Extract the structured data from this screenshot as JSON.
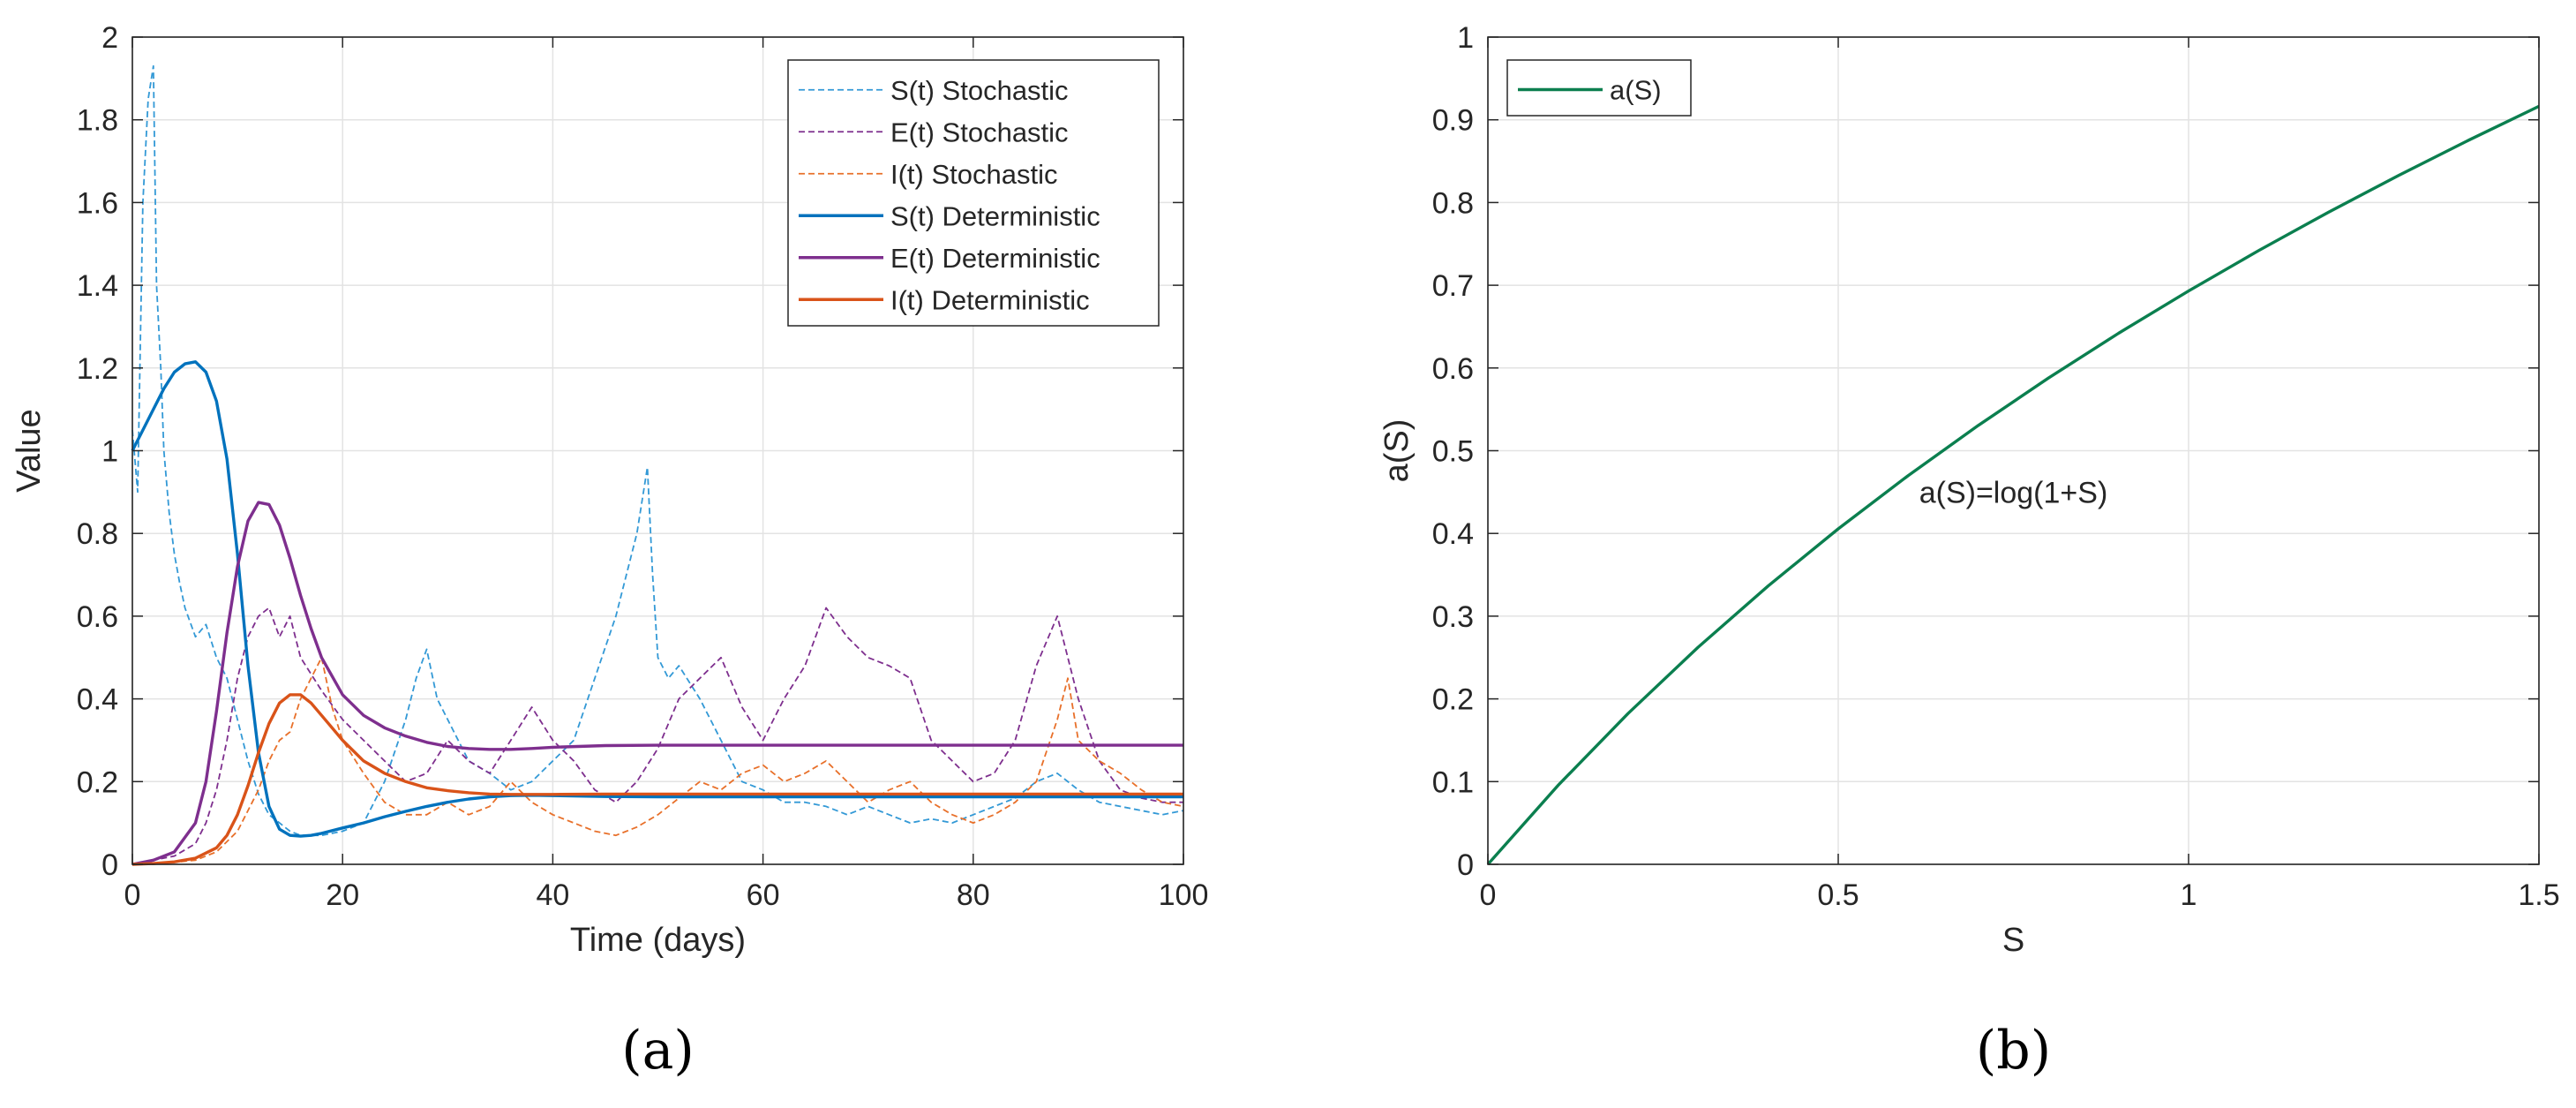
{
  "chart_data": [
    {
      "type": "line",
      "panel_label": "(a)",
      "xlabel": "Time (days)",
      "ylabel": "Value",
      "xlim": [
        0,
        100
      ],
      "ylim": [
        0,
        2
      ],
      "xticks": [
        0,
        20,
        40,
        60,
        80,
        100
      ],
      "yticks": [
        0,
        0.2,
        0.4,
        0.6,
        0.8,
        1,
        1.2,
        1.4,
        1.6,
        1.8,
        2
      ],
      "grid": true,
      "legend_position": "top-right",
      "series": [
        {
          "name": "S(t) Stochastic",
          "color": "#3399d6",
          "style": "dashed",
          "x": [
            0,
            0.5,
            1,
            1.5,
            2,
            2.3,
            2.7,
            3,
            3.5,
            4,
            4.5,
            5,
            6,
            7,
            8,
            9,
            10,
            11,
            12,
            13,
            14,
            15,
            16,
            18,
            20,
            22,
            24,
            26,
            27,
            28,
            29,
            30,
            32,
            34,
            36,
            38,
            40,
            42,
            44,
            46,
            47,
            48,
            49,
            49.5,
            50,
            51,
            52,
            54,
            56,
            58,
            60,
            62,
            64,
            66,
            68,
            70,
            72,
            74,
            76,
            78,
            80,
            82,
            84,
            86,
            88,
            90,
            92,
            94,
            96,
            98,
            100
          ],
          "values": [
            1.05,
            0.9,
            1.6,
            1.85,
            1.93,
            1.4,
            1.2,
            1.0,
            0.85,
            0.75,
            0.68,
            0.62,
            0.55,
            0.58,
            0.5,
            0.45,
            0.35,
            0.25,
            0.17,
            0.12,
            0.1,
            0.08,
            0.07,
            0.07,
            0.08,
            0.1,
            0.2,
            0.35,
            0.45,
            0.52,
            0.4,
            0.35,
            0.25,
            0.22,
            0.18,
            0.2,
            0.25,
            0.3,
            0.45,
            0.6,
            0.7,
            0.8,
            0.96,
            0.7,
            0.5,
            0.45,
            0.48,
            0.4,
            0.3,
            0.2,
            0.18,
            0.15,
            0.15,
            0.14,
            0.12,
            0.14,
            0.12,
            0.1,
            0.11,
            0.1,
            0.12,
            0.14,
            0.16,
            0.2,
            0.22,
            0.18,
            0.15,
            0.14,
            0.13,
            0.12,
            0.13
          ]
        },
        {
          "name": "E(t) Stochastic",
          "color": "#7e2f8e",
          "style": "dashed",
          "x": [
            0,
            2,
            4,
            6,
            7,
            8,
            9,
            10,
            11,
            12,
            13,
            14,
            15,
            16,
            18,
            20,
            22,
            24,
            26,
            28,
            30,
            32,
            34,
            36,
            38,
            40,
            42,
            44,
            46,
            48,
            50,
            52,
            54,
            56,
            58,
            60,
            62,
            64,
            66,
            68,
            70,
            72,
            74,
            76,
            78,
            80,
            82,
            84,
            86,
            88,
            90,
            92,
            94,
            96,
            98,
            100
          ],
          "values": [
            0,
            0.01,
            0.02,
            0.05,
            0.1,
            0.18,
            0.3,
            0.45,
            0.55,
            0.6,
            0.62,
            0.55,
            0.6,
            0.5,
            0.42,
            0.35,
            0.3,
            0.25,
            0.2,
            0.22,
            0.3,
            0.25,
            0.22,
            0.3,
            0.38,
            0.3,
            0.25,
            0.18,
            0.15,
            0.2,
            0.28,
            0.4,
            0.45,
            0.5,
            0.38,
            0.3,
            0.4,
            0.48,
            0.62,
            0.55,
            0.5,
            0.48,
            0.45,
            0.3,
            0.25,
            0.2,
            0.22,
            0.3,
            0.48,
            0.6,
            0.4,
            0.25,
            0.18,
            0.16,
            0.15,
            0.15
          ]
        },
        {
          "name": "I(t) Stochastic",
          "color": "#e8702a",
          "style": "dashed",
          "x": [
            0,
            2,
            4,
            6,
            8,
            10,
            12,
            13,
            14,
            15,
            16,
            17,
            18,
            19,
            20,
            22,
            24,
            26,
            28,
            30,
            32,
            34,
            36,
            38,
            40,
            42,
            44,
            46,
            48,
            50,
            52,
            54,
            56,
            58,
            60,
            62,
            64,
            66,
            68,
            70,
            72,
            74,
            76,
            78,
            80,
            82,
            84,
            86,
            88,
            89,
            90,
            92,
            94,
            96,
            98,
            100
          ],
          "values": [
            0,
            0,
            0.005,
            0.01,
            0.03,
            0.08,
            0.18,
            0.25,
            0.3,
            0.32,
            0.4,
            0.45,
            0.5,
            0.38,
            0.3,
            0.22,
            0.15,
            0.12,
            0.12,
            0.15,
            0.12,
            0.14,
            0.2,
            0.15,
            0.12,
            0.1,
            0.08,
            0.07,
            0.09,
            0.12,
            0.16,
            0.2,
            0.18,
            0.22,
            0.24,
            0.2,
            0.22,
            0.25,
            0.2,
            0.15,
            0.18,
            0.2,
            0.15,
            0.12,
            0.1,
            0.12,
            0.15,
            0.2,
            0.35,
            0.45,
            0.3,
            0.25,
            0.22,
            0.18,
            0.15,
            0.14
          ]
        },
        {
          "name": "S(t) Deterministic",
          "color": "#0072bd",
          "style": "solid",
          "x": [
            0,
            1,
            2,
            3,
            4,
            5,
            6,
            7,
            8,
            9,
            10,
            11,
            12,
            13,
            14,
            15,
            16,
            17,
            18,
            20,
            22,
            24,
            26,
            28,
            30,
            32,
            34,
            36,
            38,
            40,
            45,
            50,
            60,
            70,
            80,
            90,
            100
          ],
          "values": [
            1.0,
            1.05,
            1.1,
            1.15,
            1.19,
            1.21,
            1.215,
            1.19,
            1.12,
            0.98,
            0.75,
            0.48,
            0.27,
            0.14,
            0.085,
            0.07,
            0.068,
            0.07,
            0.075,
            0.088,
            0.1,
            0.115,
            0.128,
            0.14,
            0.15,
            0.158,
            0.163,
            0.166,
            0.167,
            0.166,
            0.164,
            0.163,
            0.163,
            0.163,
            0.163,
            0.163,
            0.163
          ]
        },
        {
          "name": "E(t) Deterministic",
          "color": "#7e2f8e",
          "style": "solid",
          "x": [
            0,
            2,
            4,
            6,
            7,
            8,
            9,
            10,
            11,
            12,
            13,
            14,
            15,
            16,
            17,
            18,
            20,
            22,
            24,
            26,
            28,
            30,
            32,
            34,
            36,
            38,
            40,
            45,
            50,
            60,
            70,
            80,
            90,
            100
          ],
          "values": [
            0,
            0.01,
            0.03,
            0.1,
            0.2,
            0.37,
            0.56,
            0.72,
            0.83,
            0.875,
            0.87,
            0.82,
            0.74,
            0.65,
            0.57,
            0.5,
            0.41,
            0.36,
            0.33,
            0.31,
            0.295,
            0.285,
            0.28,
            0.278,
            0.278,
            0.28,
            0.283,
            0.287,
            0.288,
            0.288,
            0.288,
            0.288,
            0.288,
            0.288
          ]
        },
        {
          "name": "I(t) Deterministic",
          "color": "#d95319",
          "style": "solid",
          "x": [
            0,
            2,
            4,
            6,
            8,
            9,
            10,
            11,
            12,
            13,
            14,
            15,
            16,
            17,
            18,
            20,
            22,
            24,
            26,
            28,
            30,
            32,
            34,
            36,
            38,
            40,
            45,
            50,
            60,
            70,
            80,
            90,
            100
          ],
          "values": [
            0,
            0.002,
            0.006,
            0.015,
            0.04,
            0.07,
            0.12,
            0.19,
            0.27,
            0.34,
            0.39,
            0.41,
            0.41,
            0.39,
            0.36,
            0.3,
            0.25,
            0.22,
            0.2,
            0.185,
            0.178,
            0.173,
            0.17,
            0.169,
            0.169,
            0.169,
            0.17,
            0.17,
            0.17,
            0.17,
            0.17,
            0.17,
            0.17
          ]
        }
      ]
    },
    {
      "type": "line",
      "panel_label": "(b)",
      "xlabel": "S",
      "ylabel": "a(S)",
      "xlim": [
        0,
        1.5
      ],
      "ylim": [
        0,
        1
      ],
      "xticks": [
        0,
        0.5,
        1,
        1.5
      ],
      "yticks": [
        0,
        0.1,
        0.2,
        0.3,
        0.4,
        0.5,
        0.6,
        0.7,
        0.8,
        0.9,
        1
      ],
      "grid": true,
      "legend_position": "top-left",
      "annotation": {
        "text": "a(S)=log(1+S)",
        "x": 0.75,
        "y": 0.45
      },
      "series": [
        {
          "name": "a(S)",
          "color": "#0b7f4f",
          "style": "solid",
          "x": [
            0,
            0.1,
            0.2,
            0.3,
            0.4,
            0.5,
            0.6,
            0.7,
            0.8,
            0.9,
            1.0,
            1.1,
            1.2,
            1.3,
            1.4,
            1.5
          ],
          "values": [
            0,
            0.0953,
            0.1823,
            0.2624,
            0.3365,
            0.4055,
            0.47,
            0.5306,
            0.5878,
            0.6419,
            0.6931,
            0.7419,
            0.7885,
            0.8329,
            0.8755,
            0.9163
          ]
        }
      ]
    }
  ]
}
